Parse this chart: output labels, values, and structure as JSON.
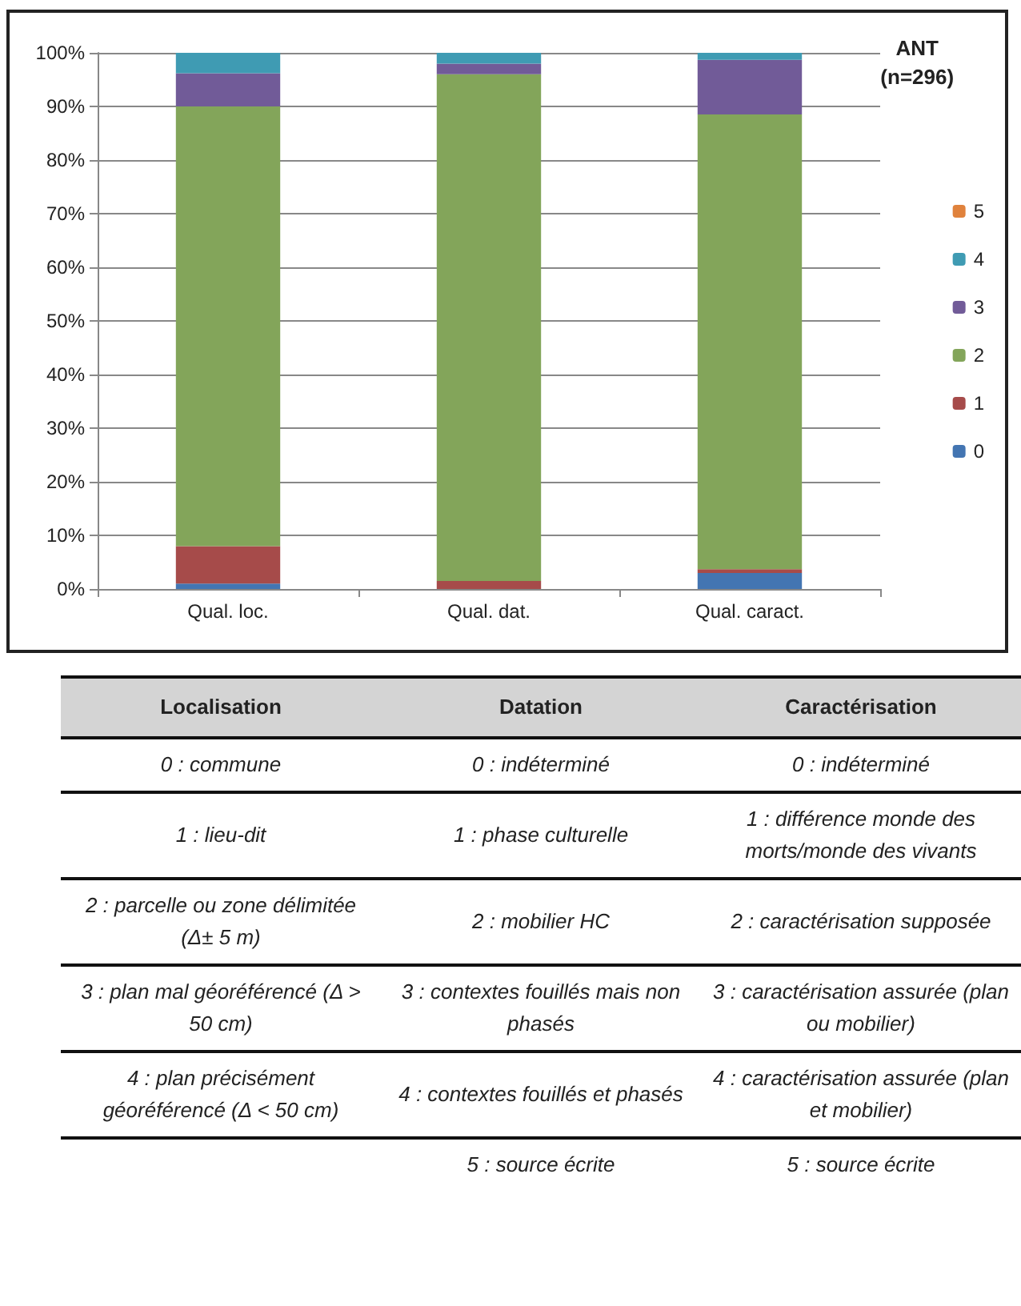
{
  "chart_data": {
    "type": "bar",
    "stacked": true,
    "categories": [
      "Qual. loc.",
      "Qual. dat.",
      "Qual. caract."
    ],
    "series": [
      {
        "name": "0",
        "color": "#4375b2",
        "values": [
          1,
          0,
          3
        ]
      },
      {
        "name": "1",
        "color": "#a64b4a",
        "values": [
          7,
          1.5,
          0.7
        ]
      },
      {
        "name": "2",
        "color": "#83a55a",
        "values": [
          82,
          94.5,
          84.8
        ]
      },
      {
        "name": "3",
        "color": "#715b98",
        "values": [
          6.2,
          2,
          10.2
        ]
      },
      {
        "name": "4",
        "color": "#3f9bb3",
        "values": [
          3.8,
          2,
          1.3
        ]
      },
      {
        "name": "5",
        "color": "#e0823c",
        "values": [
          0,
          0,
          0
        ]
      }
    ],
    "ylim": [
      0,
      100
    ],
    "yticks": [
      {
        "value": 0,
        "label": "0%"
      },
      {
        "value": 10,
        "label": "10%"
      },
      {
        "value": 20,
        "label": "20%"
      },
      {
        "value": 30,
        "label": "30%"
      },
      {
        "value": 40,
        "label": "40%"
      },
      {
        "value": 50,
        "label": "50%"
      },
      {
        "value": 60,
        "label": "60%"
      },
      {
        "value": 70,
        "label": "70%"
      },
      {
        "value": 80,
        "label": "80%"
      },
      {
        "value": 90,
        "label": "90%"
      },
      {
        "value": 100,
        "label": "100%"
      }
    ],
    "grid": "y",
    "legend": "right",
    "legend_title": "ANT\n(n=296)",
    "annotations": [
      "Localisation",
      "Datation",
      "Caractérisation",
      "0 : commune",
      "0 : indéterminé",
      "0 : indéterminé",
      "1 : lieu-dit",
      "1 : phase culturelle",
      "1 : différence monde des morts/monde des vivants",
      "2 : parcelle ou zone délimitée (Δ± 5 m)",
      "2 : mobilier HC",
      "2 : caractérisation supposée",
      "3 : plan mal géoréférencé (Δ > 50 cm)",
      "3 : contextes fouillés mais non phasés",
      "3 : caractérisation assurée (plan ou mobilier)",
      "4 : plan précisément géoréférencé (Δ < 50 cm)",
      "4 : contextes fouillés et phasés",
      "4 : caractérisation assurée (plan et mobilier)",
      "5 : source écrite",
      "5 : source écrite"
    ]
  }
}
